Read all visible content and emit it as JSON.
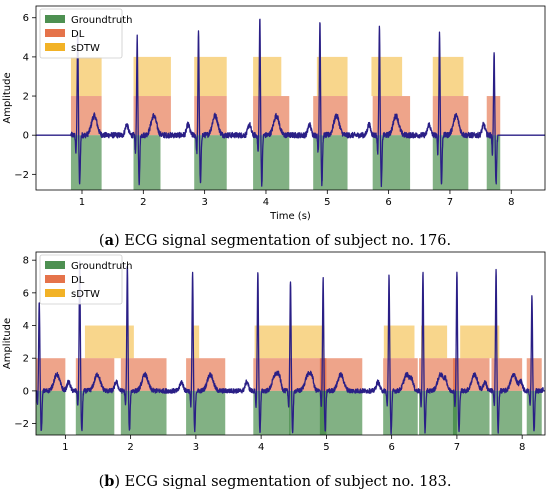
{
  "colors": {
    "groundtruth": "#2e7d32",
    "dl": "#e05a2a",
    "sdtw": "#f0a400",
    "signal": "#2a1f86",
    "axis": "#000000"
  },
  "chart_data": [
    {
      "type": "line",
      "caption_label": "a",
      "caption_text": " ECG signal segmentation of subject no. 176.",
      "xlabel": "Time (s)",
      "ylabel": "Amplitude",
      "xlim": [
        0.25,
        8.55
      ],
      "ylim": [
        -2.8,
        6.6
      ],
      "xticks": [
        1,
        2,
        3,
        4,
        5,
        6,
        7,
        8
      ],
      "yticks": [
        -2,
        0,
        2,
        4,
        6
      ],
      "legend": [
        "Groundtruth",
        "DL",
        "sDTW"
      ],
      "legend_position": "top-left",
      "beats": [
        0.93,
        1.9,
        2.9,
        3.9,
        4.88,
        5.85,
        6.83,
        7.72
      ],
      "beat_peaks": [
        5.3,
        5.0,
        5.4,
        6.0,
        5.9,
        5.7,
        5.3,
        4.3
      ],
      "signal_start": 0.82,
      "signal_end": 7.78,
      "segments": {
        "groundtruth": {
          "y0": -2.8,
          "y1": 0,
          "ranges": [
            [
              0.82,
              1.32
            ],
            [
              1.84,
              2.28
            ],
            [
              2.83,
              3.36
            ],
            [
              3.79,
              4.38
            ],
            [
              4.77,
              5.33
            ],
            [
              5.74,
              6.35
            ],
            [
              6.72,
              7.3
            ],
            [
              7.6,
              7.82
            ]
          ]
        },
        "dl": {
          "y0": 0,
          "y1": 2,
          "ranges": [
            [
              0.82,
              1.32
            ],
            [
              1.84,
              2.45
            ],
            [
              2.83,
              3.36
            ],
            [
              3.79,
              4.38
            ],
            [
              4.77,
              5.33
            ],
            [
              5.74,
              6.35
            ],
            [
              6.72,
              7.3
            ],
            [
              7.6,
              7.82
            ]
          ]
        },
        "sdtw": {
          "y0": 2,
          "y1": 4,
          "ranges": [
            [
              0.82,
              1.32
            ],
            [
              1.84,
              2.45
            ],
            [
              2.83,
              3.36
            ],
            [
              3.79,
              4.25
            ],
            [
              4.83,
              5.33
            ],
            [
              5.72,
              6.22
            ],
            [
              6.72,
              7.22
            ]
          ]
        }
      }
    },
    {
      "type": "line",
      "caption_label": "b",
      "caption_text": " ECG signal segmentation of subject no. 183.",
      "xlabel": "",
      "ylabel": "Amplitude",
      "xlim": [
        0.55,
        8.35
      ],
      "ylim": [
        -2.7,
        8.5
      ],
      "xticks": [
        1,
        2,
        3,
        4,
        5,
        6,
        7,
        8
      ],
      "yticks": [
        -2,
        0,
        2,
        4,
        6,
        8
      ],
      "legend": [
        "Groundtruth",
        "DL",
        "sDTW"
      ],
      "legend_position": "top-left",
      "beats": [
        0.6,
        1.22,
        1.95,
        2.95,
        3.95,
        4.45,
        4.95,
        5.96,
        6.48,
        7.0,
        7.6,
        8.15
      ],
      "beat_peaks": [
        5.5,
        7.9,
        7.7,
        7.2,
        7.3,
        6.8,
        6.9,
        7.1,
        7.4,
        7.3,
        7.4,
        5.8
      ],
      "signal_start": 0.56,
      "signal_end": 8.32,
      "segments": {
        "groundtruth": {
          "y0": -2.7,
          "y1": 0,
          "ranges": [
            [
              0.55,
              1.0
            ],
            [
              1.16,
              1.75
            ],
            [
              1.85,
              2.55
            ],
            [
              2.85,
              3.45
            ],
            [
              3.88,
              4.45
            ],
            [
              4.43,
              5.0
            ],
            [
              4.9,
              5.55
            ],
            [
              5.87,
              6.4
            ],
            [
              6.42,
              7.0
            ],
            [
              6.94,
              7.5
            ],
            [
              7.53,
              8.0
            ],
            [
              8.07,
              8.3
            ]
          ]
        },
        "dl": {
          "y0": 0,
          "y1": 2,
          "ranges": [
            [
              0.55,
              1.0
            ],
            [
              1.16,
              1.75
            ],
            [
              1.85,
              2.55
            ],
            [
              2.85,
              3.45
            ],
            [
              3.88,
              4.45
            ],
            [
              4.43,
              5.0
            ],
            [
              4.9,
              5.55
            ],
            [
              5.87,
              6.4
            ],
            [
              6.42,
              7.0
            ],
            [
              6.94,
              7.5
            ],
            [
              7.53,
              8.0
            ],
            [
              8.07,
              8.3
            ]
          ]
        },
        "sdtw": {
          "y0": 2,
          "y1": 4,
          "ranges": [
            [
              1.3,
              2.05
            ],
            [
              2.95,
              3.05
            ],
            [
              3.9,
              4.45
            ],
            [
              4.45,
              4.97
            ],
            [
              5.88,
              6.35
            ],
            [
              6.45,
              6.85
            ],
            [
              7.05,
              7.65
            ]
          ]
        }
      }
    }
  ]
}
